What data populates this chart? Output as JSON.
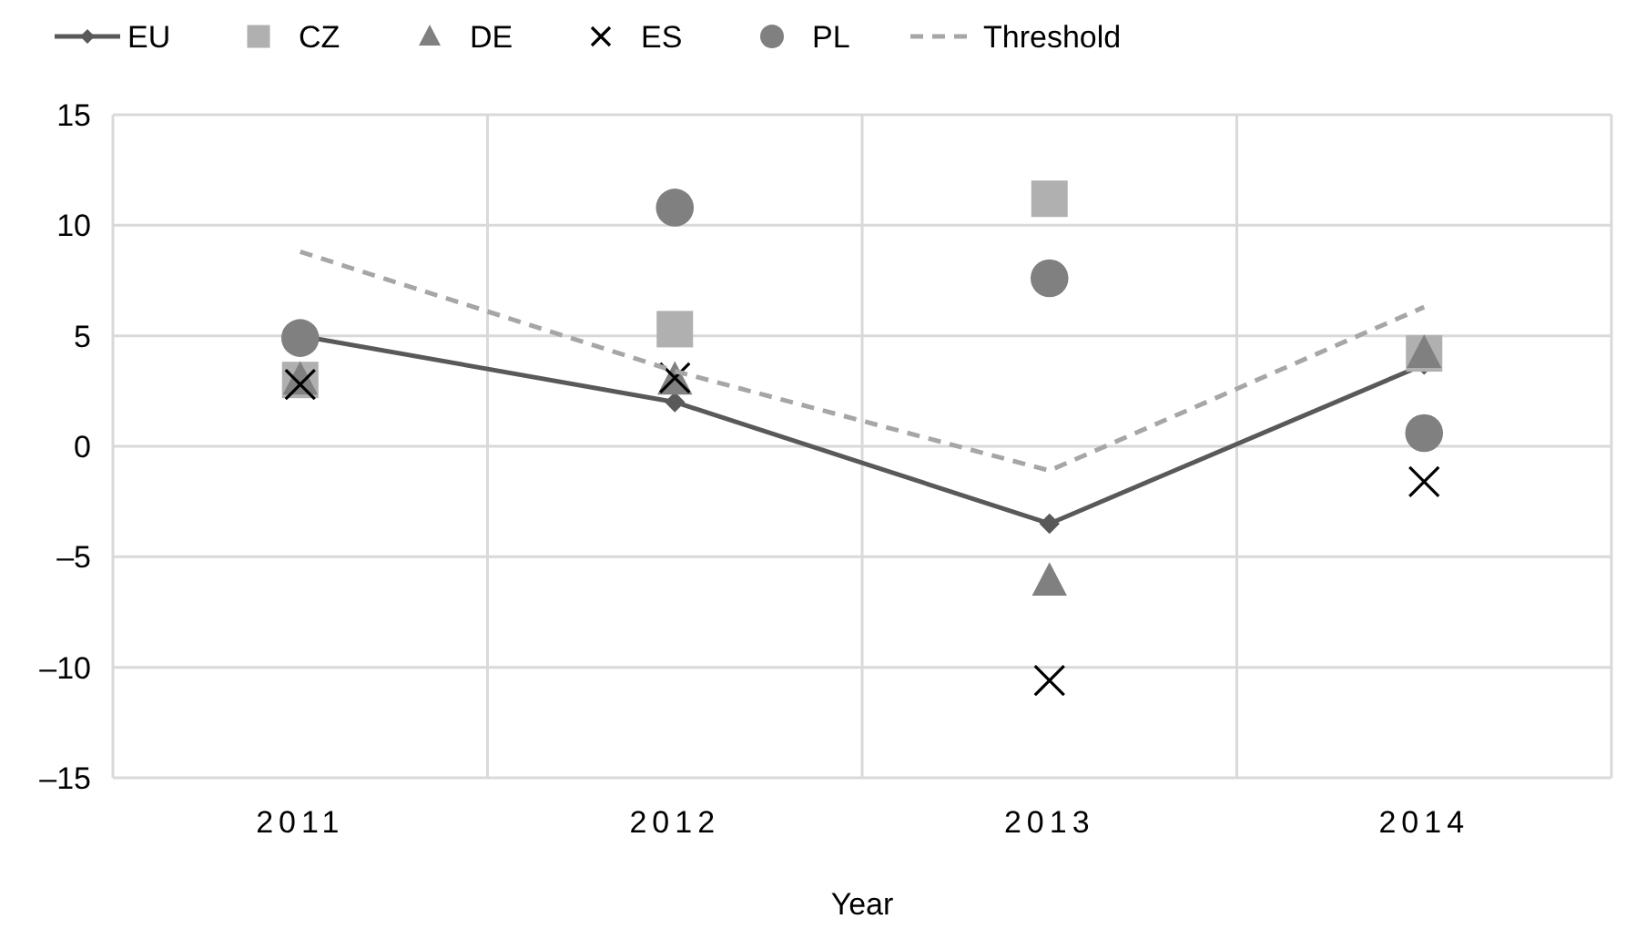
{
  "chart_data": {
    "type": "line",
    "xlabel": "Year",
    "categories": [
      "2011",
      "2012",
      "2013",
      "2014"
    ],
    "ylim": [
      -15,
      15
    ],
    "yticks": [
      {
        "value": -15,
        "label": "–15"
      },
      {
        "value": -10,
        "label": "–10"
      },
      {
        "value": -5,
        "label": "–5"
      },
      0,
      5,
      10,
      15
    ],
    "grid": true,
    "legend": "top",
    "series": [
      {
        "name": "EU",
        "color": "#595959",
        "marker": "diamond",
        "line_style": "solid",
        "values": [
          5.0,
          2.0,
          -3.5,
          3.7
        ]
      },
      {
        "name": "CZ",
        "type": "scatter",
        "color": "#b0b0b0",
        "marker": "square",
        "values": [
          3.0,
          5.3,
          11.2,
          4.2
        ]
      },
      {
        "name": "DE",
        "type": "scatter",
        "color": "#808080",
        "marker": "triangle",
        "values": [
          3.0,
          3.0,
          -6.1,
          4.2
        ]
      },
      {
        "name": "ES",
        "type": "scatter",
        "color": "#000000",
        "marker": "cross",
        "values": [
          2.8,
          3.1,
          -10.6,
          -1.6
        ]
      },
      {
        "name": "PL",
        "type": "scatter",
        "color": "#808080",
        "marker": "circle",
        "values": [
          4.9,
          10.8,
          7.6,
          0.6
        ]
      },
      {
        "name": "Threshold",
        "color": "#a6a6a6",
        "marker": "none",
        "line_style": "dashed",
        "values": [
          8.8,
          3.4,
          -1.1,
          6.3
        ]
      }
    ]
  }
}
